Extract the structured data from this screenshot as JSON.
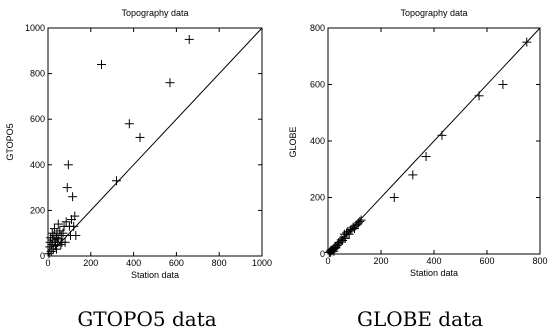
{
  "captions": [
    "GTOPO5 data",
    "GLOBE data"
  ],
  "chart_data": [
    {
      "type": "scatter",
      "title": "Topography data",
      "xlabel": "Station data",
      "ylabel": "GTOPO5",
      "xlim": [
        0,
        1000
      ],
      "ylim": [
        0,
        1000
      ],
      "xticks": [
        "0",
        "200",
        "400",
        "600",
        "800",
        "1000"
      ],
      "yticks": [
        "0",
        "200",
        "400",
        "600",
        "800",
        "1000"
      ],
      "reference_line": "y = x",
      "marker": "+",
      "points": [
        [
          5,
          10
        ],
        [
          8,
          40
        ],
        [
          10,
          60
        ],
        [
          12,
          80
        ],
        [
          15,
          20
        ],
        [
          18,
          50
        ],
        [
          20,
          100
        ],
        [
          22,
          70
        ],
        [
          25,
          30
        ],
        [
          28,
          90
        ],
        [
          30,
          120
        ],
        [
          32,
          60
        ],
        [
          35,
          45
        ],
        [
          38,
          80
        ],
        [
          40,
          30
        ],
        [
          42,
          100
        ],
        [
          45,
          60
        ],
        [
          48,
          140
        ],
        [
          50,
          75
        ],
        [
          55,
          110
        ],
        [
          60,
          50
        ],
        [
          62,
          90
        ],
        [
          65,
          60
        ],
        [
          70,
          100
        ],
        [
          75,
          130
        ],
        [
          80,
          60
        ],
        [
          85,
          150
        ],
        [
          90,
          300
        ],
        [
          95,
          400
        ],
        [
          100,
          130
        ],
        [
          105,
          90
        ],
        [
          110,
          160
        ],
        [
          115,
          260
        ],
        [
          120,
          130
        ],
        [
          125,
          175
        ],
        [
          130,
          90
        ],
        [
          250,
          840
        ],
        [
          320,
          330
        ],
        [
          380,
          580
        ],
        [
          430,
          520
        ],
        [
          570,
          760
        ],
        [
          660,
          950
        ]
      ]
    },
    {
      "type": "scatter",
      "title": "Topography data",
      "xlabel": "Station data",
      "ylabel": "GLOBE",
      "xlim": [
        0,
        800
      ],
      "ylim": [
        0,
        800
      ],
      "xticks": [
        "0",
        "200",
        "400",
        "600",
        "800"
      ],
      "yticks": [
        "0",
        "200",
        "400",
        "600",
        "800"
      ],
      "reference_line": "y = x",
      "marker": "+",
      "points": [
        [
          5,
          5
        ],
        [
          8,
          10
        ],
        [
          10,
          6
        ],
        [
          12,
          14
        ],
        [
          15,
          12
        ],
        [
          18,
          15
        ],
        [
          20,
          18
        ],
        [
          22,
          10
        ],
        [
          25,
          20
        ],
        [
          28,
          25
        ],
        [
          30,
          22
        ],
        [
          35,
          30
        ],
        [
          38,
          35
        ],
        [
          40,
          40
        ],
        [
          45,
          42
        ],
        [
          50,
          50
        ],
        [
          55,
          48
        ],
        [
          60,
          60
        ],
        [
          62,
          70
        ],
        [
          65,
          55
        ],
        [
          70,
          75
        ],
        [
          75,
          80
        ],
        [
          80,
          70
        ],
        [
          85,
          85
        ],
        [
          90,
          88
        ],
        [
          95,
          95
        ],
        [
          100,
          90
        ],
        [
          105,
          100
        ],
        [
          110,
          105
        ],
        [
          115,
          110
        ],
        [
          120,
          115
        ],
        [
          125,
          120
        ],
        [
          250,
          200
        ],
        [
          320,
          280
        ],
        [
          370,
          345
        ],
        [
          430,
          420
        ],
        [
          570,
          560
        ],
        [
          660,
          600
        ],
        [
          750,
          750
        ]
      ]
    }
  ]
}
